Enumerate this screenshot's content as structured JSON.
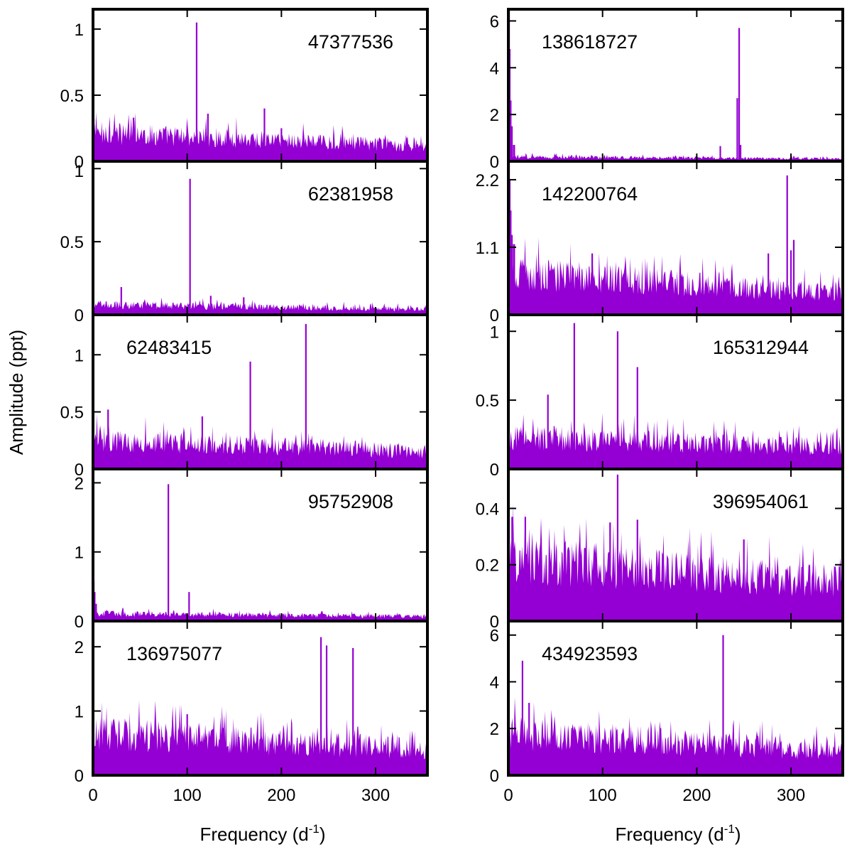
{
  "figure": {
    "xlabel": "Frequency (d",
    "xlabel_sup": "-1",
    "xlabel_close": ")",
    "ylabel": "Amplitude (ppt)",
    "series_color": "#9400d3"
  },
  "chart_data": [
    {
      "type": "line",
      "id": "47377536",
      "label": "47377536",
      "label_pos": "top-right",
      "column": 0,
      "row": 0,
      "xlim": [
        0,
        355
      ],
      "ylim": [
        0,
        1.15
      ],
      "yticks": [
        0,
        0.5,
        1
      ],
      "ytick_labels": [
        "0",
        "0.5",
        "1"
      ],
      "noise": {
        "start": 0.28,
        "end": 0.15
      },
      "low_freq": [
        {
          "x": 0.5,
          "y": 0.32
        }
      ],
      "peaks": [
        {
          "x": 110,
          "y": 1.05
        },
        {
          "x": 182,
          "y": 0.4
        },
        {
          "x": 122,
          "y": 0.36
        },
        {
          "x": 43,
          "y": 0.33
        },
        {
          "x": 200,
          "y": 0.25
        }
      ]
    },
    {
      "type": "line",
      "id": "62381958",
      "label": "62381958",
      "label_pos": "top-right",
      "column": 0,
      "row": 1,
      "xlim": [
        0,
        355
      ],
      "ylim": [
        0,
        1.05
      ],
      "yticks": [
        0,
        0.5,
        1
      ],
      "ytick_labels": [
        "0",
        "0.5",
        "1"
      ],
      "noise": {
        "start": 0.09,
        "end": 0.05
      },
      "low_freq": [],
      "peaks": [
        {
          "x": 103,
          "y": 0.93
        },
        {
          "x": 30,
          "y": 0.19
        },
        {
          "x": 125,
          "y": 0.13
        },
        {
          "x": 160,
          "y": 0.12
        }
      ]
    },
    {
      "type": "line",
      "id": "62483415",
      "label": "62483415",
      "label_pos": "top-left",
      "column": 0,
      "row": 2,
      "xlim": [
        0,
        355
      ],
      "ylim": [
        0,
        1.35
      ],
      "yticks": [
        0,
        0.5,
        1
      ],
      "ytick_labels": [
        "0",
        "0.5",
        "1"
      ],
      "noise": {
        "start": 0.33,
        "end": 0.2
      },
      "low_freq": [],
      "peaks": [
        {
          "x": 226,
          "y": 1.27
        },
        {
          "x": 167,
          "y": 0.94
        },
        {
          "x": 16,
          "y": 0.52
        },
        {
          "x": 116,
          "y": 0.46
        }
      ]
    },
    {
      "type": "line",
      "id": "95752908",
      "label": "95752908",
      "label_pos": "top-right",
      "column": 0,
      "row": 3,
      "xlim": [
        0,
        355
      ],
      "ylim": [
        0,
        2.2
      ],
      "yticks": [
        0,
        1,
        2
      ],
      "ytick_labels": [
        "0",
        "1",
        "2"
      ],
      "noise": {
        "start": 0.14,
        "end": 0.09
      },
      "low_freq": [
        {
          "x": 0.5,
          "y": 0.58
        },
        {
          "x": 1.5,
          "y": 0.42
        },
        {
          "x": 3,
          "y": 0.25
        }
      ],
      "peaks": [
        {
          "x": 80,
          "y": 1.98
        },
        {
          "x": 102,
          "y": 0.42
        }
      ]
    },
    {
      "type": "line",
      "id": "136975077",
      "label": "136975077",
      "label_pos": "top-left",
      "column": 0,
      "row": 4,
      "xlim": [
        0,
        355
      ],
      "ylim": [
        0,
        2.4
      ],
      "yticks": [
        0,
        1,
        2
      ],
      "ytick_labels": [
        "0",
        "1",
        "2"
      ],
      "noise": {
        "start": 0.85,
        "end": 0.52
      },
      "low_freq": [],
      "peaks": [
        {
          "x": 242,
          "y": 2.15
        },
        {
          "x": 248,
          "y": 2.02
        },
        {
          "x": 276,
          "y": 1.98
        },
        {
          "x": 100,
          "y": 0.95
        }
      ]
    },
    {
      "type": "line",
      "id": "138618727",
      "label": "138618727",
      "label_pos": "top-left",
      "column": 1,
      "row": 0,
      "xlim": [
        0,
        355
      ],
      "ylim": [
        0,
        6.5
      ],
      "yticks": [
        0,
        2,
        4,
        6
      ],
      "ytick_labels": [
        "0",
        "2",
        "4",
        "6"
      ],
      "noise": {
        "start": 0.25,
        "end": 0.14
      },
      "low_freq": [
        {
          "x": 0.5,
          "y": 6.5
        },
        {
          "x": 1.2,
          "y": 4.8
        },
        {
          "x": 2.2,
          "y": 2.6
        },
        {
          "x": 3.5,
          "y": 1.5
        },
        {
          "x": 6,
          "y": 0.7
        }
      ],
      "peaks": [
        {
          "x": 245,
          "y": 5.7
        },
        {
          "x": 243,
          "y": 2.7
        },
        {
          "x": 246.5,
          "y": 0.7
        },
        {
          "x": 225,
          "y": 0.65
        }
      ]
    },
    {
      "type": "line",
      "id": "142200764",
      "label": "142200764",
      "label_pos": "top-left",
      "column": 1,
      "row": 1,
      "xlim": [
        0,
        355
      ],
      "ylim": [
        0,
        2.5
      ],
      "yticks": [
        0,
        1.1,
        2.2
      ],
      "ytick_labels": [
        "0",
        "1.1",
        "2.2"
      ],
      "noise": {
        "start": 0.88,
        "end": 0.45
      },
      "low_freq": [
        {
          "x": 0.5,
          "y": 2.5
        },
        {
          "x": 1.2,
          "y": 2.2
        },
        {
          "x": 2.2,
          "y": 1.7
        },
        {
          "x": 3.5,
          "y": 1.3
        },
        {
          "x": 6,
          "y": 1.15
        }
      ],
      "peaks": [
        {
          "x": 296,
          "y": 2.27
        },
        {
          "x": 303,
          "y": 1.22
        },
        {
          "x": 276,
          "y": 1.0
        },
        {
          "x": 300,
          "y": 1.05
        },
        {
          "x": 89,
          "y": 1.0
        }
      ]
    },
    {
      "type": "line",
      "id": "165312944",
      "label": "165312944",
      "label_pos": "top-right",
      "column": 1,
      "row": 2,
      "xlim": [
        0,
        355
      ],
      "ylim": [
        0,
        1.12
      ],
      "yticks": [
        0,
        0.5,
        1
      ],
      "ytick_labels": [
        "0",
        "0.5",
        "1"
      ],
      "noise": {
        "start": 0.3,
        "end": 0.2
      },
      "low_freq": [],
      "peaks": [
        {
          "x": 70,
          "y": 1.06
        },
        {
          "x": 116,
          "y": 1.0
        },
        {
          "x": 137,
          "y": 0.74
        },
        {
          "x": 42,
          "y": 0.54
        }
      ]
    },
    {
      "type": "line",
      "id": "396954061",
      "label": "396954061",
      "label_pos": "top-right",
      "column": 1,
      "row": 3,
      "xlim": [
        0,
        355
      ],
      "ylim": [
        0,
        0.54
      ],
      "yticks": [
        0,
        0.2,
        0.4
      ],
      "ytick_labels": [
        "0",
        "0.2",
        "0.4"
      ],
      "noise": {
        "start": 0.28,
        "end": 0.18
      },
      "low_freq": [],
      "peaks": [
        {
          "x": 116,
          "y": 0.52
        },
        {
          "x": 4,
          "y": 0.37
        },
        {
          "x": 18,
          "y": 0.37
        },
        {
          "x": 137,
          "y": 0.36
        },
        {
          "x": 108,
          "y": 0.35
        },
        {
          "x": 250,
          "y": 0.29
        }
      ]
    },
    {
      "type": "line",
      "id": "434923593",
      "label": "434923593",
      "label_pos": "top-left",
      "column": 1,
      "row": 4,
      "xlim": [
        0,
        355
      ],
      "ylim": [
        0,
        6.6
      ],
      "yticks": [
        0,
        2,
        4,
        6
      ],
      "ytick_labels": [
        "0",
        "2",
        "4",
        "6"
      ],
      "noise": {
        "start": 2.3,
        "end": 1.35
      },
      "low_freq": [],
      "peaks": [
        {
          "x": 228,
          "y": 6.0
        },
        {
          "x": 15,
          "y": 4.9
        },
        {
          "x": 22,
          "y": 3.1
        }
      ]
    }
  ],
  "x_axis": {
    "ticks": [
      0,
      100,
      200,
      300
    ],
    "tick_labels": [
      "0",
      "100",
      "200",
      "300"
    ]
  }
}
